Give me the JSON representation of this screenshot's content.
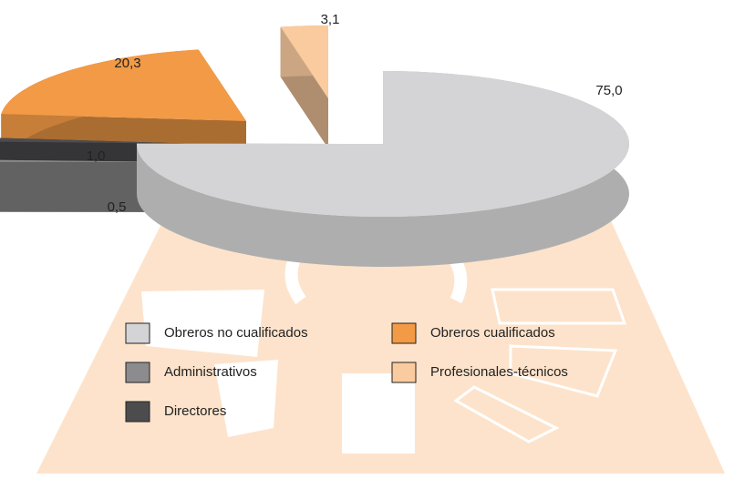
{
  "chart_data": {
    "type": "pie",
    "categories": [
      "Obreros no cualificados",
      "Administrativos",
      "Directores",
      "Obreros cualificados",
      "Profesionales-técnicos"
    ],
    "values": [
      75.0,
      0.5,
      1.0,
      20.3,
      3.1
    ],
    "value_labels": [
      "75,0",
      "0,5",
      "1,0",
      "20,3",
      "3,1"
    ],
    "colors": [
      "#d4d4d6",
      "#8c8c8e",
      "#4c4c4e",
      "#f29a46",
      "#f9cb9e"
    ],
    "legend": "bottom"
  }
}
